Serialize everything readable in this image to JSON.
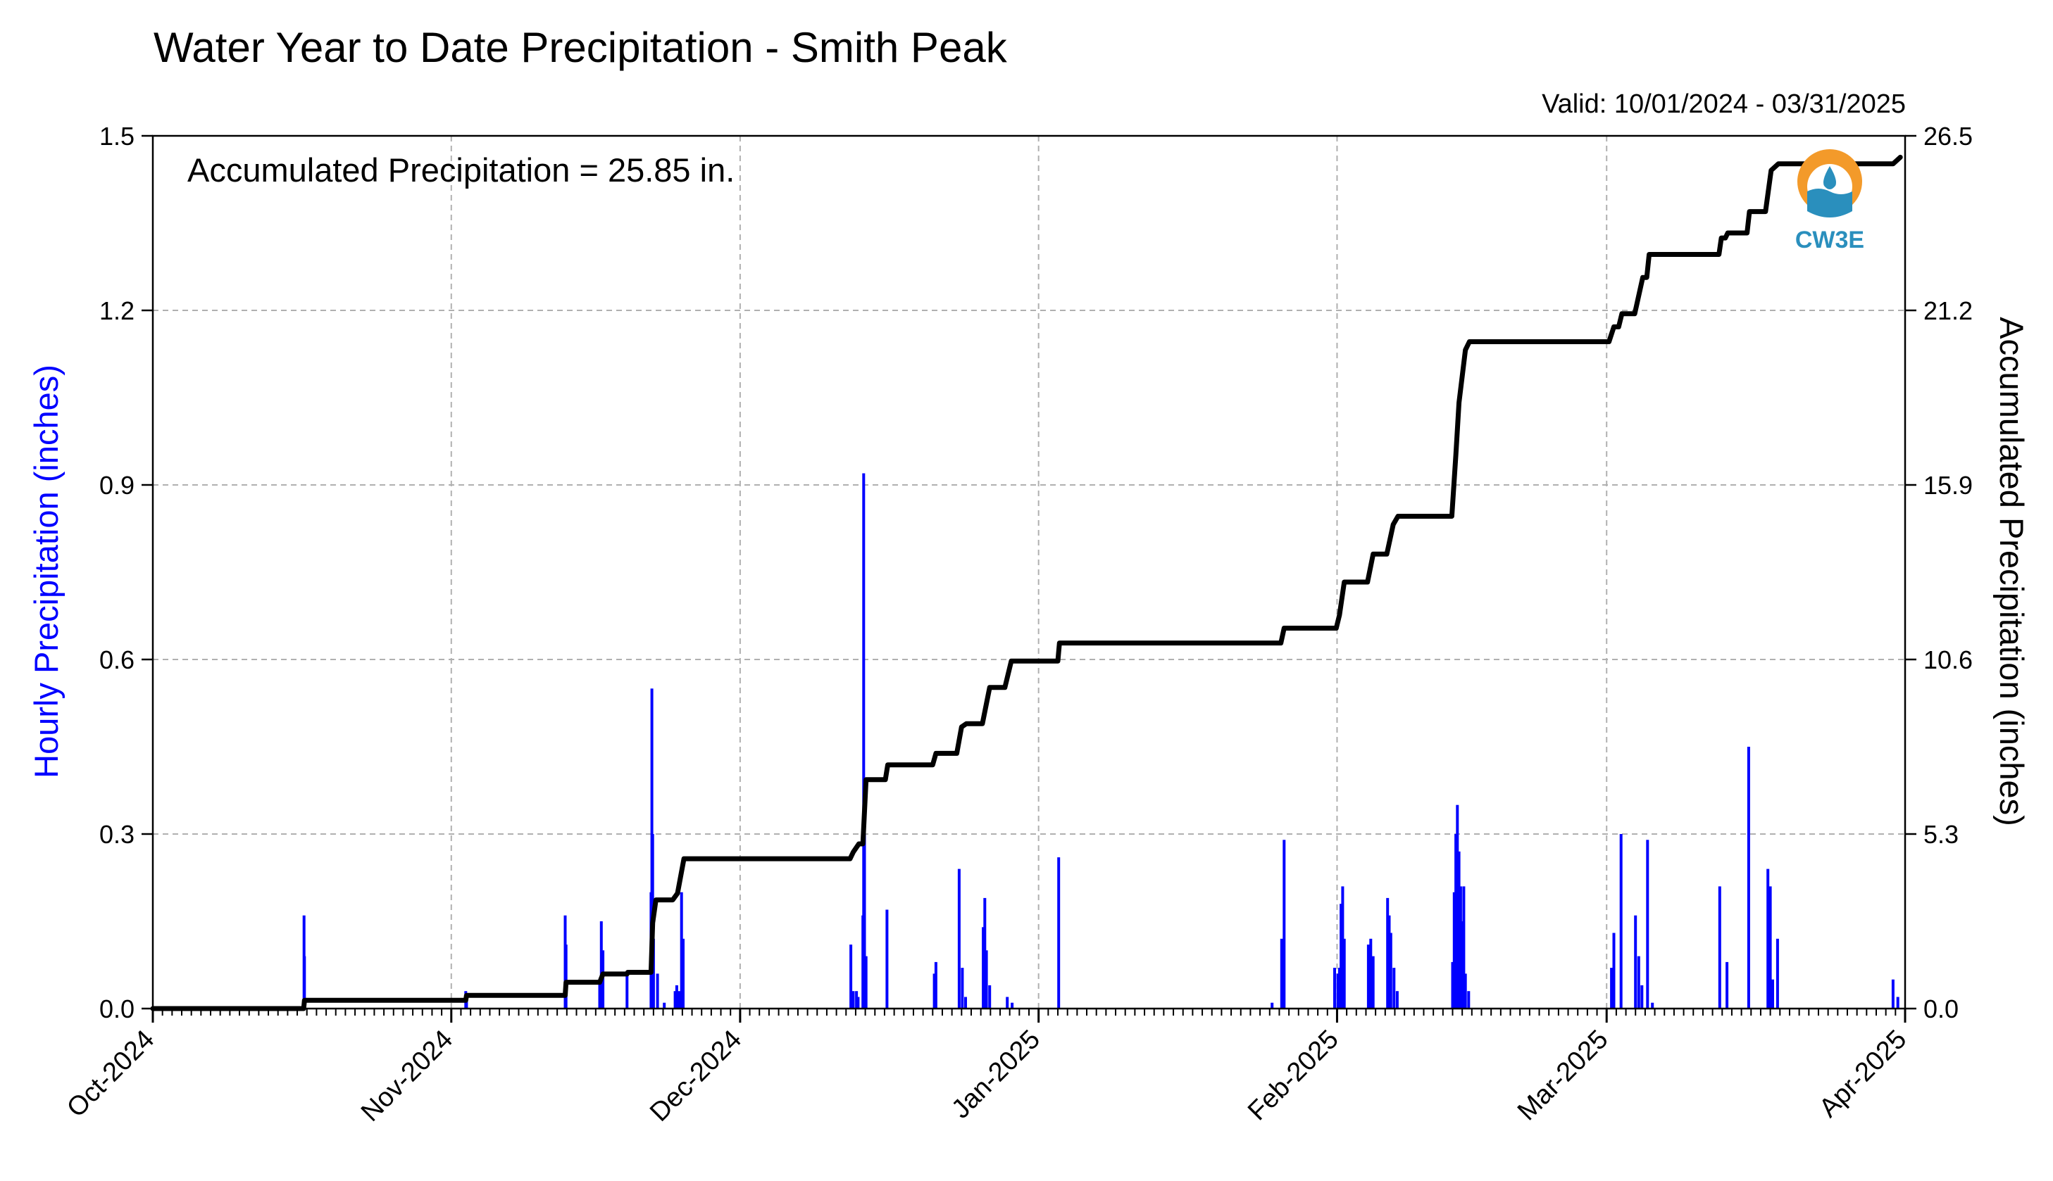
{
  "chart_data": {
    "type": "bar",
    "title": "Water Year to Date Precipitation - Smith Peak",
    "valid_text": "Valid: 10/01/2024 - 03/31/2025",
    "annotation": "Accumulated Precipitation = 25.85 in.",
    "ylabel_left": "Hourly Precipitation (inches)",
    "ylabel_right": "Accumulated Precipitation (inches)",
    "xlim": [
      "2024-10-01",
      "2025-04-01"
    ],
    "ylim_left": [
      0,
      1.5
    ],
    "ylim_right": [
      0,
      26.5
    ],
    "left_ticks": [
      "0.0",
      "0.3",
      "0.6",
      "0.9",
      "1.2",
      "1.5"
    ],
    "right_ticks": [
      "0.0",
      "5.3",
      "10.6",
      "15.9",
      "21.2",
      "26.5"
    ],
    "x_ticks": [
      {
        "date": "2024-10-01",
        "label": "Oct-2024"
      },
      {
        "date": "2024-11-01",
        "label": "Nov-2024"
      },
      {
        "date": "2024-12-01",
        "label": "Dec-2024"
      },
      {
        "date": "2025-01-01",
        "label": "Jan-2025"
      },
      {
        "date": "2025-02-01",
        "label": "Feb-2025"
      },
      {
        "date": "2025-03-01",
        "label": "Mar-2025"
      },
      {
        "date": "2025-04-01",
        "label": "Apr-2025"
      }
    ],
    "grid": true,
    "series": [
      {
        "axis": "left",
        "color": "#0000ff",
        "points": [
          [
            "2024-10-16T17:00",
            0.16
          ],
          [
            "2024-10-16T18:00",
            0.09
          ],
          [
            "2024-11-02T12:00",
            0.03
          ],
          [
            "2024-11-02T14:00",
            0.02
          ],
          [
            "2024-11-12T20:00",
            0.16
          ],
          [
            "2024-11-12T22:00",
            0.11
          ],
          [
            "2024-11-16T10:00",
            0.05
          ],
          [
            "2024-11-16T14:00",
            0.15
          ],
          [
            "2024-11-16T18:00",
            0.1
          ],
          [
            "2024-11-19T06:00",
            0.06
          ],
          [
            "2024-11-21T18:00",
            0.2
          ],
          [
            "2024-11-21T20:00",
            0.55
          ],
          [
            "2024-11-21T22:00",
            0.3
          ],
          [
            "2024-11-22T00:00",
            0.12
          ],
          [
            "2024-11-22T10:00",
            0.06
          ],
          [
            "2024-11-23T03:00",
            0.01
          ],
          [
            "2024-11-24T06:00",
            0.03
          ],
          [
            "2024-11-24T10:00",
            0.04
          ],
          [
            "2024-11-24T16:00",
            0.03
          ],
          [
            "2024-11-24T22:00",
            0.2
          ],
          [
            "2024-11-25T02:00",
            0.12
          ],
          [
            "2024-12-12T12:00",
            0.11
          ],
          [
            "2024-12-12T18:00",
            0.03
          ],
          [
            "2024-12-13T02:00",
            0.03
          ],
          [
            "2024-12-13T06:00",
            0.02
          ],
          [
            "2024-12-13T18:00",
            0.16
          ],
          [
            "2024-12-13T20:00",
            0.92
          ],
          [
            "2024-12-13T22:00",
            0.3
          ],
          [
            "2024-12-14T02:00",
            0.09
          ],
          [
            "2024-12-16T06:00",
            0.17
          ],
          [
            "2024-12-21T04:00",
            0.06
          ],
          [
            "2024-12-21T08:00",
            0.08
          ],
          [
            "2024-12-23T18:00",
            0.24
          ],
          [
            "2024-12-24T02:00",
            0.07
          ],
          [
            "2024-12-24T10:00",
            0.02
          ],
          [
            "2024-12-26T06:00",
            0.14
          ],
          [
            "2024-12-26T10:00",
            0.19
          ],
          [
            "2024-12-26T14:00",
            0.1
          ],
          [
            "2024-12-26T22:00",
            0.04
          ],
          [
            "2024-12-28T18:00",
            0.02
          ],
          [
            "2024-12-29T06:00",
            0.01
          ],
          [
            "2025-01-03T02:00",
            0.26
          ],
          [
            "2025-01-25T06:00",
            0.01
          ],
          [
            "2025-01-26T06:00",
            0.12
          ],
          [
            "2025-01-26T12:00",
            0.29
          ],
          [
            "2025-01-31T18:00",
            0.07
          ],
          [
            "2025-02-01T02:00",
            0.06
          ],
          [
            "2025-02-01T06:00",
            0.07
          ],
          [
            "2025-02-01T10:00",
            0.18
          ],
          [
            "2025-02-01T14:00",
            0.21
          ],
          [
            "2025-02-01T18:00",
            0.12
          ],
          [
            "2025-02-04T06:00",
            0.11
          ],
          [
            "2025-02-04T12:00",
            0.12
          ],
          [
            "2025-02-04T18:00",
            0.09
          ],
          [
            "2025-02-06T06:00",
            0.19
          ],
          [
            "2025-02-06T10:00",
            0.16
          ],
          [
            "2025-02-06T14:00",
            0.13
          ],
          [
            "2025-02-06T22:00",
            0.07
          ],
          [
            "2025-02-07T06:00",
            0.03
          ],
          [
            "2025-02-13T00:00",
            0.08
          ],
          [
            "2025-02-13T04:00",
            0.2
          ],
          [
            "2025-02-13T08:00",
            0.3
          ],
          [
            "2025-02-13T12:00",
            0.35
          ],
          [
            "2025-02-13T16:00",
            0.27
          ],
          [
            "2025-02-13T20:00",
            0.21
          ],
          [
            "2025-02-14T00:00",
            0.15
          ],
          [
            "2025-02-14T04:00",
            0.21
          ],
          [
            "2025-02-14T08:00",
            0.06
          ],
          [
            "2025-02-14T16:00",
            0.03
          ],
          [
            "2025-03-01T12:00",
            0.07
          ],
          [
            "2025-03-01T18:00",
            0.13
          ],
          [
            "2025-03-02T12:00",
            0.3
          ],
          [
            "2025-03-04T00:00",
            0.16
          ],
          [
            "2025-03-04T08:00",
            0.09
          ],
          [
            "2025-03-04T16:00",
            0.04
          ],
          [
            "2025-03-05T06:00",
            0.29
          ],
          [
            "2025-03-05T18:00",
            0.01
          ],
          [
            "2025-03-12T18:00",
            0.21
          ],
          [
            "2025-03-13T12:00",
            0.08
          ],
          [
            "2025-03-15T18:00",
            0.45
          ],
          [
            "2025-03-17T18:00",
            0.24
          ],
          [
            "2025-03-18T00:00",
            0.21
          ],
          [
            "2025-03-18T06:00",
            0.05
          ],
          [
            "2025-03-18T18:00",
            0.12
          ],
          [
            "2025-03-30T18:00",
            0.05
          ],
          [
            "2025-03-31T06:00",
            0.02
          ]
        ]
      },
      {
        "axis": "right",
        "color": "#000000",
        "points": [
          [
            "2024-10-01",
            0.0
          ],
          [
            "2024-10-16T16:00",
            0.0
          ],
          [
            "2024-10-16T18:00",
            0.25
          ],
          [
            "2024-11-02T12:00",
            0.25
          ],
          [
            "2024-11-02T14:00",
            0.4
          ],
          [
            "2024-11-12T20:00",
            0.4
          ],
          [
            "2024-11-12T22:00",
            0.8
          ],
          [
            "2024-11-16T10:00",
            0.8
          ],
          [
            "2024-11-16T18:00",
            1.05
          ],
          [
            "2024-11-19T06:00",
            1.05
          ],
          [
            "2024-11-19T08:00",
            1.1
          ],
          [
            "2024-11-21T18:00",
            1.1
          ],
          [
            "2024-11-21T22:00",
            2.6
          ],
          [
            "2024-11-22T06:00",
            3.3
          ],
          [
            "2024-11-24T00:00",
            3.3
          ],
          [
            "2024-11-24T12:00",
            3.5
          ],
          [
            "2024-11-25T04:00",
            4.55
          ],
          [
            "2024-12-12T10:00",
            4.55
          ],
          [
            "2024-12-12T18:00",
            4.75
          ],
          [
            "2024-12-13T08:00",
            5.0
          ],
          [
            "2024-12-13T18:00",
            5.0
          ],
          [
            "2024-12-14T02:00",
            6.95
          ],
          [
            "2024-12-16T02:00",
            6.95
          ],
          [
            "2024-12-16T08:00",
            7.4
          ],
          [
            "2024-12-21T00:00",
            7.4
          ],
          [
            "2024-12-21T08:00",
            7.75
          ],
          [
            "2024-12-23T12:00",
            7.75
          ],
          [
            "2024-12-24T00:00",
            8.55
          ],
          [
            "2024-12-24T12:00",
            8.65
          ],
          [
            "2024-12-26T04:00",
            8.65
          ],
          [
            "2024-12-26T22:00",
            9.75
          ],
          [
            "2024-12-28T12:00",
            9.75
          ],
          [
            "2024-12-29T04:00",
            10.55
          ],
          [
            "2025-01-03T00:00",
            10.55
          ],
          [
            "2025-01-03T04:00",
            11.1
          ],
          [
            "2025-01-26T04:00",
            11.1
          ],
          [
            "2025-01-26T12:00",
            11.55
          ],
          [
            "2025-01-31T22:00",
            11.55
          ],
          [
            "2025-02-01T06:00",
            11.95
          ],
          [
            "2025-02-01T18:00",
            12.95
          ],
          [
            "2025-02-04T04:00",
            12.95
          ],
          [
            "2025-02-04T18:00",
            13.8
          ],
          [
            "2025-02-06T04:00",
            13.8
          ],
          [
            "2025-02-06T20:00",
            14.7
          ],
          [
            "2025-02-07T08:00",
            14.95
          ],
          [
            "2025-02-12T22:00",
            14.95
          ],
          [
            "2025-02-13T08:00",
            16.8
          ],
          [
            "2025-02-13T16:00",
            18.4
          ],
          [
            "2025-02-14T08:00",
            20.0
          ],
          [
            "2025-02-14T18:00",
            20.25
          ],
          [
            "2025-03-01T06:00",
            20.25
          ],
          [
            "2025-03-01T18:00",
            20.7
          ],
          [
            "2025-03-02T06:00",
            20.7
          ],
          [
            "2025-03-02T14:00",
            21.1
          ],
          [
            "2025-03-03T22:00",
            21.1
          ],
          [
            "2025-03-04T18:00",
            22.2
          ],
          [
            "2025-03-05T04:00",
            22.2
          ],
          [
            "2025-03-05T10:00",
            22.9
          ],
          [
            "2025-03-12T16:00",
            22.9
          ],
          [
            "2025-03-12T22:00",
            23.4
          ],
          [
            "2025-03-13T08:00",
            23.4
          ],
          [
            "2025-03-13T14:00",
            23.55
          ],
          [
            "2025-03-15T14:00",
            23.55
          ],
          [
            "2025-03-15T20:00",
            24.2
          ],
          [
            "2025-03-17T12:00",
            24.2
          ],
          [
            "2025-03-18T02:00",
            25.45
          ],
          [
            "2025-03-18T20:00",
            25.65
          ],
          [
            "2025-03-30T18:00",
            25.65
          ],
          [
            "2025-03-31T12:00",
            25.85
          ]
        ]
      }
    ]
  }
}
